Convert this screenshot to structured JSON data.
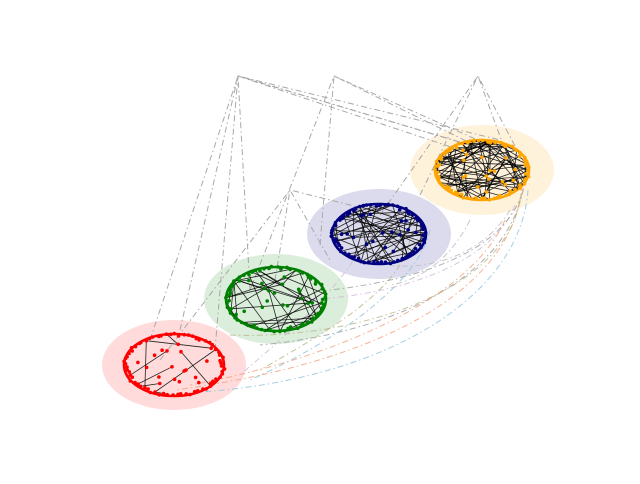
{
  "figure": {
    "kind": "multilayer-network",
    "background": "#ffffff",
    "edge_color": "#000000",
    "layers": [
      {
        "id": "layer-red",
        "color": "#ff0000",
        "halo": "#ffd0d0",
        "nodes": 85,
        "edges": 10
      },
      {
        "id": "layer-green",
        "color": "#008000",
        "halo": "#cfe8cf",
        "nodes": 85,
        "edges": 40
      },
      {
        "id": "layer-navy",
        "color": "#000080",
        "halo": "#d7d7ef",
        "nodes": 85,
        "edges": 60
      },
      {
        "id": "layer-orange",
        "color": "#ffa500",
        "halo": "#fdebc8",
        "nodes": 85,
        "edges": 90
      }
    ],
    "interlayer_colors": [
      "#a0a0a0",
      "#f4a582",
      "#92c5de",
      "#b8b88a",
      "#d4b9da",
      "#bdbdbd"
    ]
  }
}
